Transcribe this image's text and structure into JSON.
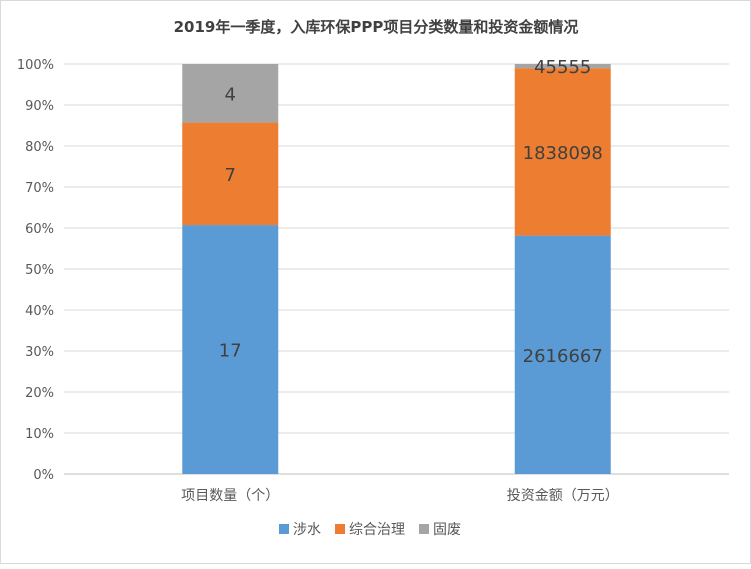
{
  "chart_data": {
    "type": "bar",
    "stacked": "percent",
    "title": "2019年一季度，入库环保PPP项目分类数量和投资金额情况",
    "categories": [
      "项目数量（个）",
      "投资金额（万元）"
    ],
    "series": [
      {
        "name": "涉水",
        "color": "#5b9bd5",
        "values": [
          17,
          2616667
        ]
      },
      {
        "name": "综合治理",
        "color": "#ed7d31",
        "values": [
          7,
          1838098
        ]
      },
      {
        "name": "固废",
        "color": "#a5a5a5",
        "values": [
          4,
          45555
        ]
      }
    ],
    "yticks": [
      "0%",
      "10%",
      "20%",
      "30%",
      "40%",
      "50%",
      "60%",
      "70%",
      "80%",
      "90%",
      "100%"
    ],
    "ylim": [
      0,
      100
    ],
    "grid": true,
    "legend_position": "bottom"
  }
}
